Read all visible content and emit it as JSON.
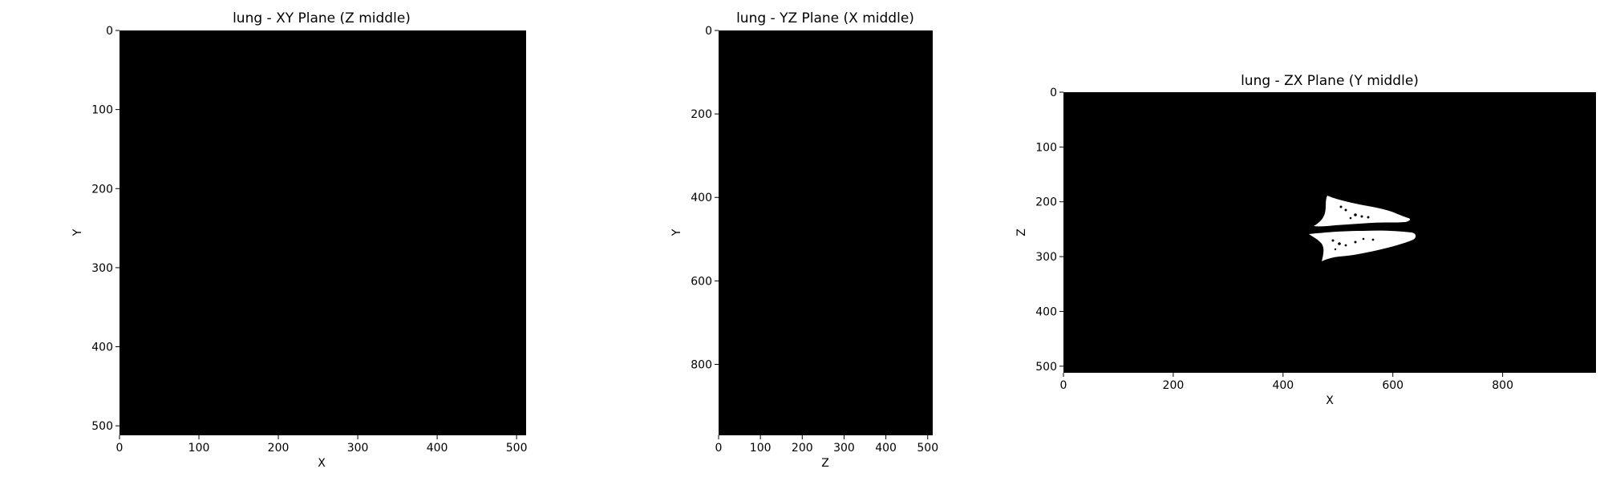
{
  "panels": [
    {
      "id": "xy",
      "title": "lung - XY Plane (Z middle)",
      "xlabel": "X",
      "ylabel": "Y",
      "xlim": [
        0,
        512
      ],
      "ylim": [
        0,
        512
      ],
      "xticks": [
        0,
        100,
        200,
        300,
        400,
        500
      ],
      "yticks": [
        0,
        100,
        200,
        300,
        400,
        500
      ],
      "background": "#000000"
    },
    {
      "id": "yz",
      "title": "lung - YZ Plane (X middle)",
      "xlabel": "Z",
      "ylabel": "Y",
      "xlim": [
        0,
        512
      ],
      "ylim": [
        0,
        970
      ],
      "xticks": [
        0,
        100,
        200,
        300,
        400,
        500
      ],
      "yticks": [
        0,
        200,
        400,
        600,
        800
      ],
      "background": "#000000"
    },
    {
      "id": "zx",
      "title": "lung - ZX Plane (Y middle)",
      "xlabel": "X",
      "ylabel": "Z",
      "xlim": [
        0,
        970
      ],
      "ylim": [
        0,
        512
      ],
      "xticks": [
        0,
        200,
        400,
        600,
        800
      ],
      "yticks": [
        0,
        100,
        200,
        300,
        400,
        500
      ],
      "background": "#000000",
      "mask_color": "#ffffff"
    }
  ]
}
